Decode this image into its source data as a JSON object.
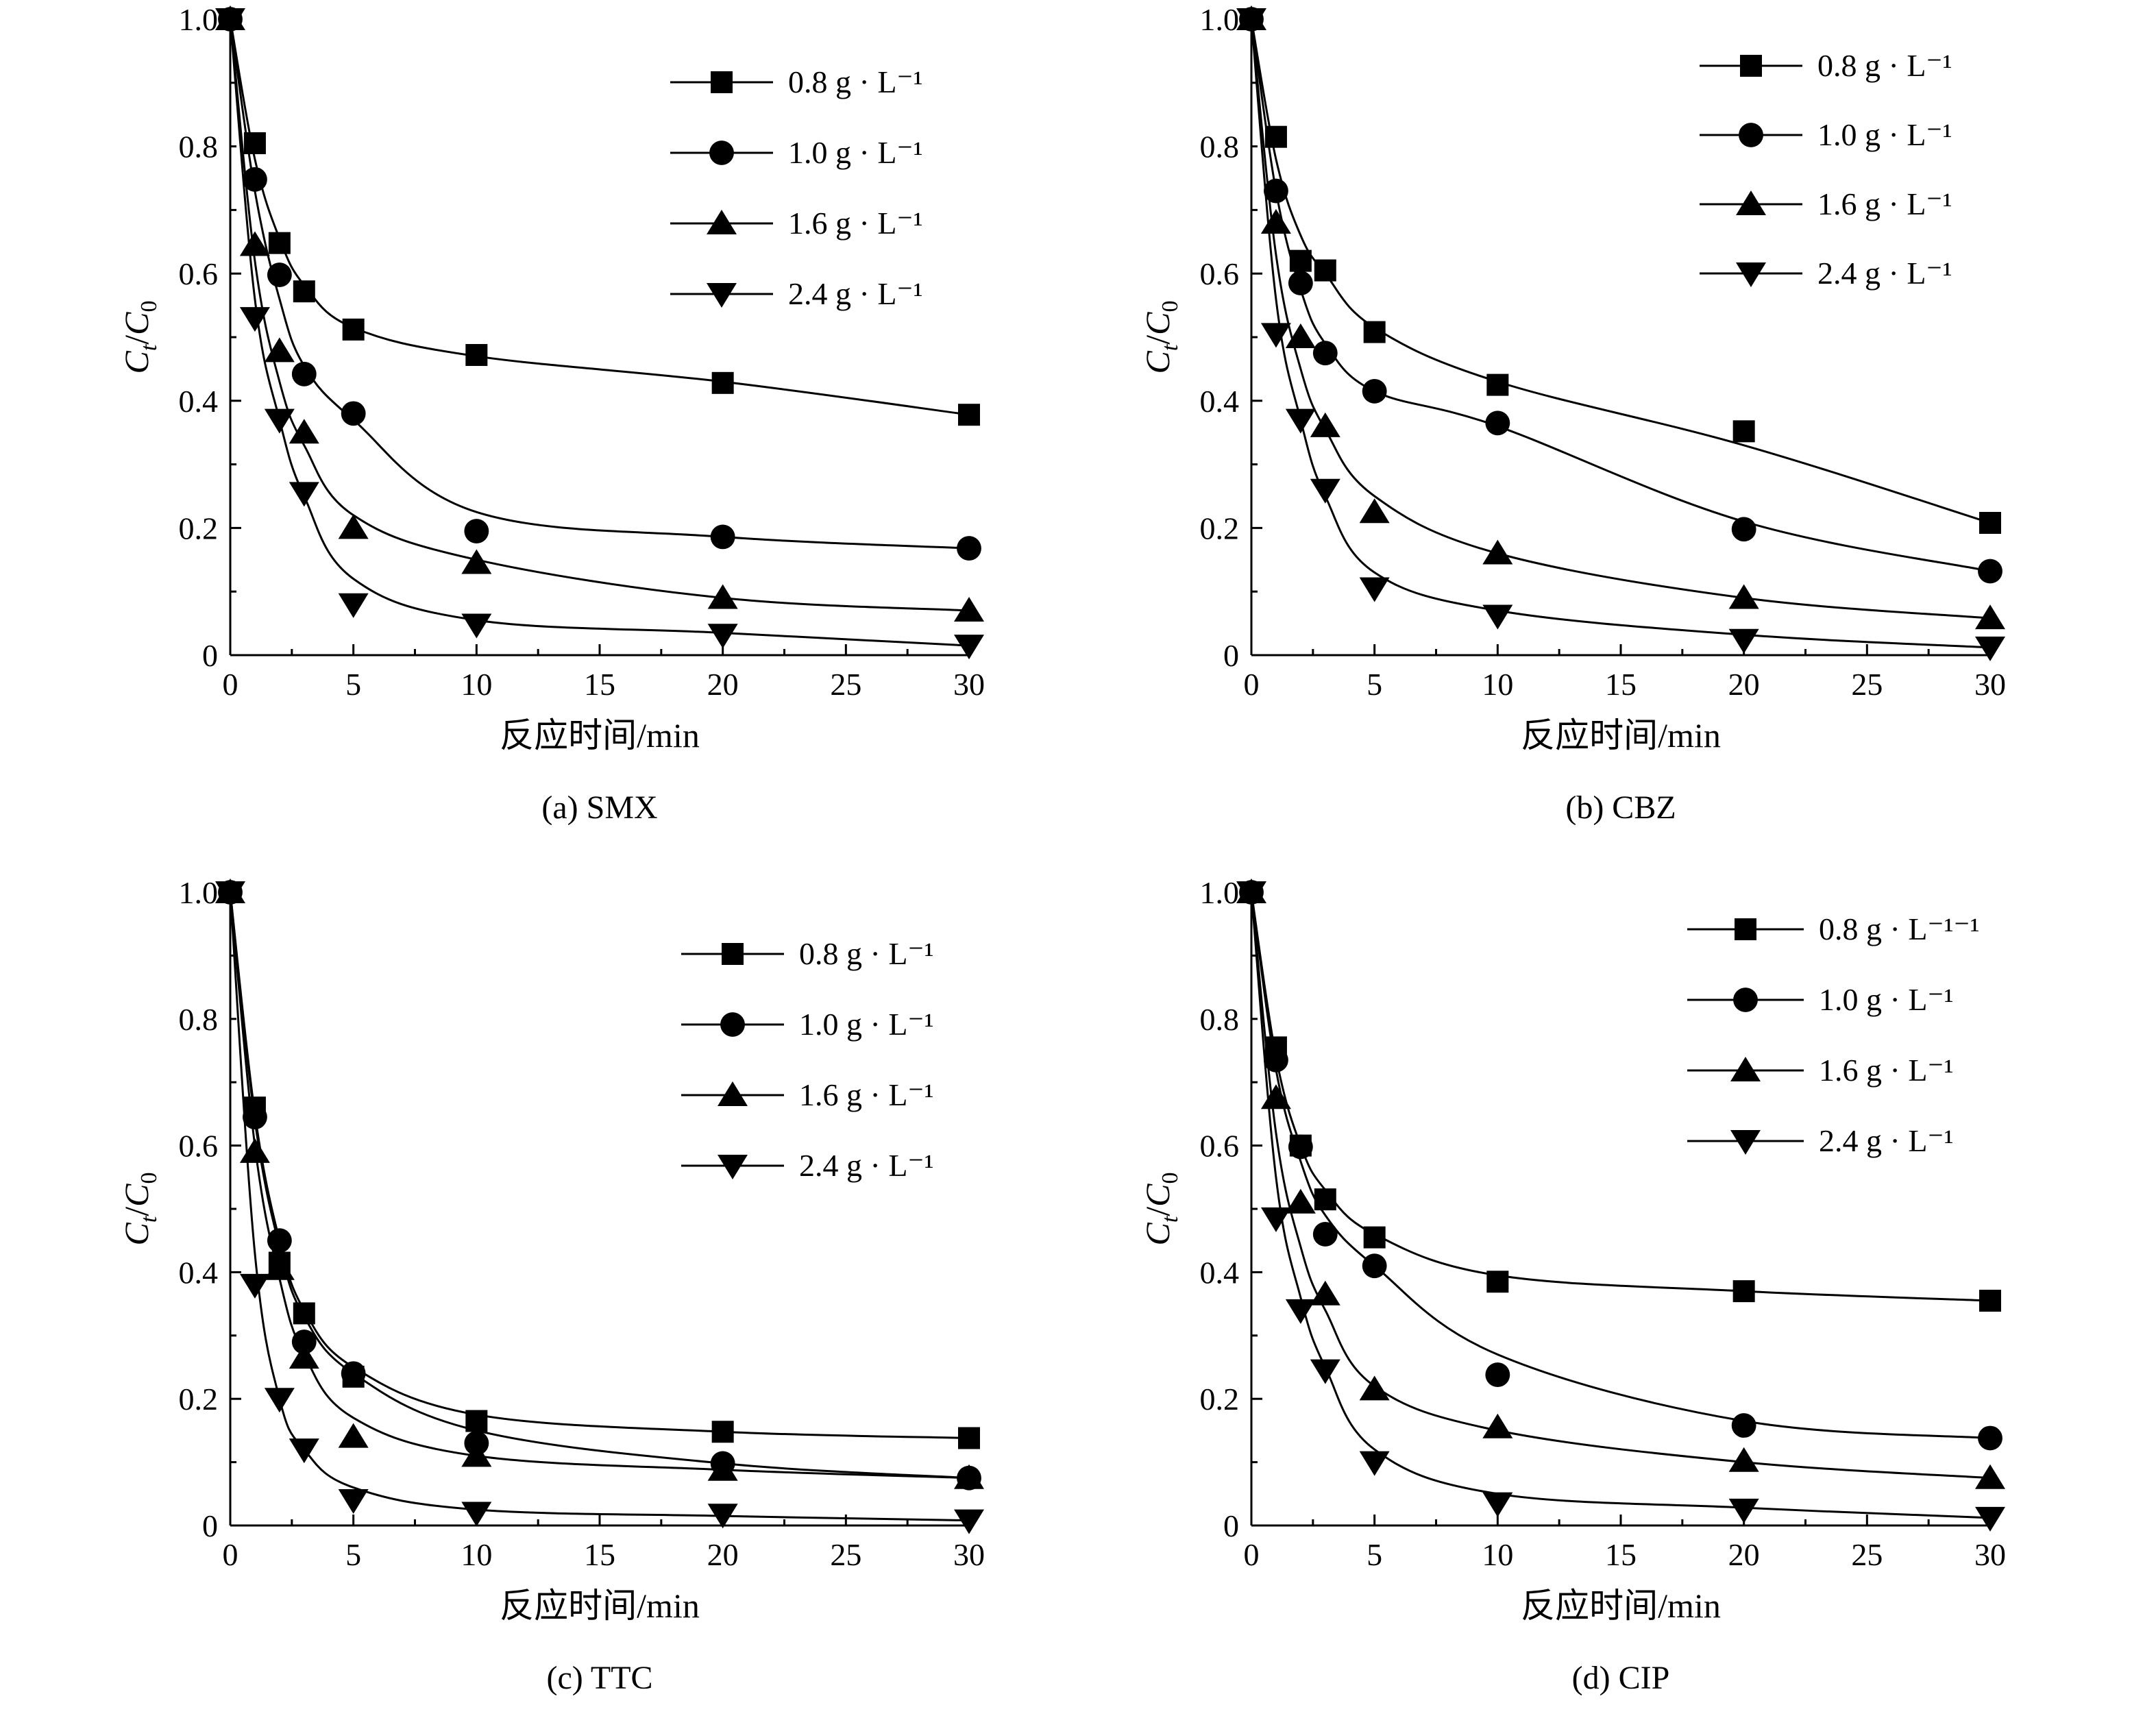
{
  "figure": {
    "x_axis_label": "反应时间/min",
    "y_axis_label": {
      "c": "C",
      "t": "t",
      "slash": "/",
      "c0": "C",
      "zero": "0"
    }
  },
  "chart_data": [
    {
      "type": "line",
      "panel": "(a) SMX",
      "xlabel": "反应时间/min",
      "ylabel": "Ct/C0",
      "xlim": [
        0,
        30
      ],
      "ylim": [
        0,
        1.0
      ],
      "xticks": [
        "0",
        "5",
        "10",
        "15",
        "20",
        "25",
        "30"
      ],
      "yticks": [
        "0",
        "0.2",
        "0.4",
        "0.6",
        "0.8",
        "1.0"
      ],
      "legend_position": "top-right",
      "x": [
        0,
        1,
        2,
        3,
        5,
        10,
        20,
        30
      ],
      "series": [
        {
          "name": "0.8 g · L⁻¹",
          "marker": "square",
          "values": [
            1.0,
            0.805,
            0.648,
            0.572,
            0.512,
            0.472,
            0.428,
            0.378
          ],
          "fit": [
            1.0,
            0.78,
            0.655,
            0.582,
            0.515,
            0.47,
            0.43,
            0.378
          ]
        },
        {
          "name": "1.0 g · L⁻¹",
          "marker": "circle",
          "values": [
            1.0,
            0.748,
            0.598,
            0.442,
            0.38,
            0.195,
            0.186,
            0.168
          ],
          "fit": [
            1.0,
            0.73,
            0.56,
            0.455,
            0.37,
            0.225,
            0.186,
            0.168
          ]
        },
        {
          "name": "1.6 g · L⁻¹",
          "marker": "triangle-up",
          "values": [
            1.0,
            0.645,
            0.478,
            0.35,
            0.2,
            0.145,
            0.09,
            0.07
          ],
          "fit": [
            1.0,
            0.62,
            0.43,
            0.33,
            0.22,
            0.15,
            0.09,
            0.07
          ]
        },
        {
          "name": "2.4 g · L⁻¹",
          "marker": "triangle-down",
          "values": [
            1.0,
            0.53,
            0.37,
            0.255,
            0.08,
            0.048,
            0.032,
            0.015
          ],
          "fit": [
            1.0,
            0.56,
            0.37,
            0.25,
            0.12,
            0.055,
            0.035,
            0.015
          ]
        }
      ]
    },
    {
      "type": "line",
      "panel": "(b) CBZ",
      "xlabel": "反应时间/min",
      "ylabel": "Ct/C0",
      "xlim": [
        0,
        30
      ],
      "ylim": [
        0,
        1.0
      ],
      "xticks": [
        "0",
        "5",
        "10",
        "15",
        "20",
        "25",
        "30"
      ],
      "yticks": [
        "0",
        "0.2",
        "0.4",
        "0.6",
        "0.8",
        "1.0"
      ],
      "legend_position": "top-right",
      "x": [
        0,
        1,
        2,
        3,
        5,
        10,
        20,
        30
      ],
      "series": [
        {
          "name": "0.8 g · L⁻¹",
          "marker": "square",
          "values": [
            1.0,
            0.815,
            0.62,
            0.605,
            0.508,
            0.425,
            0.352,
            0.208
          ],
          "fit": [
            1.0,
            0.78,
            0.66,
            0.6,
            0.515,
            0.43,
            0.33,
            0.208
          ]
        },
        {
          "name": "1.0 g · L⁻¹",
          "marker": "circle",
          "values": [
            1.0,
            0.73,
            0.585,
            0.475,
            0.415,
            0.365,
            0.198,
            0.132
          ],
          "fit": [
            1.0,
            0.73,
            0.575,
            0.49,
            0.415,
            0.36,
            0.21,
            0.132
          ]
        },
        {
          "name": "1.6 g · L⁻¹",
          "marker": "triangle-up",
          "values": [
            1.0,
            0.68,
            0.5,
            0.36,
            0.225,
            0.16,
            0.09,
            0.058
          ],
          "fit": [
            1.0,
            0.63,
            0.45,
            0.355,
            0.25,
            0.16,
            0.09,
            0.058
          ]
        },
        {
          "name": "2.4 g · L⁻¹",
          "marker": "triangle-down",
          "values": [
            1.0,
            0.505,
            0.37,
            0.26,
            0.105,
            0.062,
            0.024,
            0.012
          ],
          "fit": [
            1.0,
            0.56,
            0.37,
            0.25,
            0.13,
            0.07,
            0.032,
            0.012
          ]
        }
      ]
    },
    {
      "type": "line",
      "panel": "(c) TTC",
      "xlabel": "反应时间/min",
      "ylabel": "Ct/C0",
      "xlim": [
        0,
        30
      ],
      "ylim": [
        0,
        1.0
      ],
      "xticks": [
        "0",
        "5",
        "10",
        "15",
        "20",
        "25",
        "30"
      ],
      "yticks": [
        "0",
        "0.2",
        "0.4",
        "0.6",
        "0.8",
        "1.0"
      ],
      "legend_position": "top-right",
      "x": [
        0,
        1,
        2,
        3,
        5,
        10,
        20,
        30
      ],
      "series": [
        {
          "name": "0.8 g · L⁻¹",
          "marker": "square",
          "values": [
            1.0,
            0.66,
            0.415,
            0.335,
            0.235,
            0.165,
            0.148,
            0.138
          ],
          "fit": [
            1.0,
            0.65,
            0.45,
            0.34,
            0.25,
            0.175,
            0.148,
            0.138
          ]
        },
        {
          "name": "1.0 g · L⁻¹",
          "marker": "circle",
          "values": [
            1.0,
            0.645,
            0.45,
            0.29,
            0.24,
            0.13,
            0.098,
            0.075
          ],
          "fit": [
            1.0,
            0.64,
            0.44,
            0.33,
            0.24,
            0.15,
            0.098,
            0.075
          ]
        },
        {
          "name": "1.6 g · L⁻¹",
          "marker": "triangle-up",
          "values": [
            1.0,
            0.59,
            0.405,
            0.265,
            0.14,
            0.11,
            0.088,
            0.075
          ],
          "fit": [
            1.0,
            0.6,
            0.39,
            0.27,
            0.17,
            0.11,
            0.088,
            0.075
          ]
        },
        {
          "name": "2.4 g · L⁻¹",
          "marker": "triangle-down",
          "values": [
            1.0,
            0.38,
            0.2,
            0.12,
            0.04,
            0.02,
            0.017,
            0.008
          ],
          "fit": [
            1.0,
            0.43,
            0.2,
            0.12,
            0.06,
            0.025,
            0.015,
            0.008
          ]
        }
      ]
    },
    {
      "type": "line",
      "panel": "(d) CIP",
      "xlabel": "反应时间/min",
      "ylabel": "Ct/C0",
      "xlim": [
        0,
        30
      ],
      "ylim": [
        0,
        1.0
      ],
      "xticks": [
        "0",
        "5",
        "10",
        "15",
        "20",
        "25",
        "30"
      ],
      "yticks": [
        "0",
        "0.2",
        "0.4",
        "0.6",
        "0.8",
        "1.0"
      ],
      "legend_position": "top-right",
      "x": [
        0,
        1,
        2,
        3,
        5,
        10,
        20,
        30
      ],
      "series": [
        {
          "name": "0.8 g · L⁻¹⁻¹",
          "marker": "square",
          "values": [
            1.0,
            0.755,
            0.6,
            0.515,
            0.455,
            0.385,
            0.37,
            0.355
          ],
          "fit": [
            1.0,
            0.74,
            0.6,
            0.53,
            0.46,
            0.395,
            0.37,
            0.355
          ]
        },
        {
          "name": "1.0 g · L⁻¹",
          "marker": "circle",
          "values": [
            1.0,
            0.735,
            0.598,
            0.46,
            0.41,
            0.238,
            0.158,
            0.138
          ],
          "fit": [
            1.0,
            0.72,
            0.575,
            0.49,
            0.41,
            0.27,
            0.165,
            0.138
          ]
        },
        {
          "name": "1.6 g · L⁻¹",
          "marker": "triangle-up",
          "values": [
            1.0,
            0.675,
            0.51,
            0.365,
            0.215,
            0.155,
            0.102,
            0.075
          ],
          "fit": [
            1.0,
            0.62,
            0.44,
            0.34,
            0.22,
            0.15,
            0.1,
            0.075
          ]
        },
        {
          "name": "2.4 g · L⁻¹",
          "marker": "triangle-down",
          "values": [
            1.0,
            0.485,
            0.34,
            0.245,
            0.1,
            0.035,
            0.025,
            0.012
          ],
          "fit": [
            1.0,
            0.55,
            0.36,
            0.25,
            0.12,
            0.05,
            0.028,
            0.012
          ]
        }
      ]
    }
  ]
}
